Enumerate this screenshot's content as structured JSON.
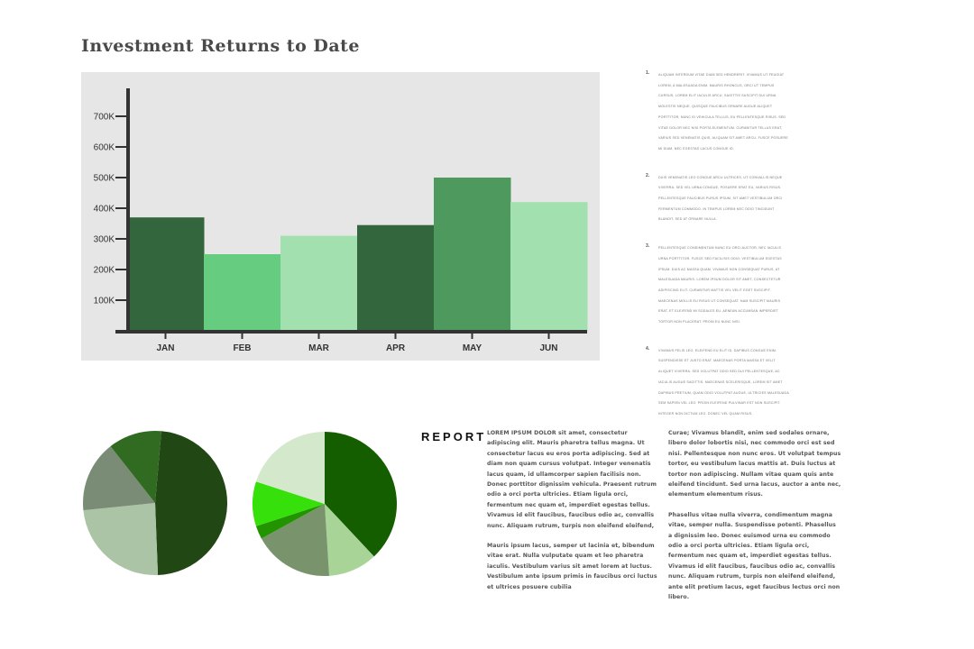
{
  "page": {
    "title": "Investment Returns to Date"
  },
  "chart_data": [
    {
      "type": "bar",
      "title": "Investment Returns to Date",
      "categories": [
        "JAN",
        "FEB",
        "MAR",
        "APR",
        "MAY",
        "JUN"
      ],
      "values": [
        370000,
        250000,
        310000,
        345000,
        500000,
        420000
      ],
      "colors": [
        "#33663d",
        "#66cc80",
        "#a3e0b0",
        "#33663d",
        "#4e995e",
        "#a3e0b0"
      ],
      "yticks": [
        100000,
        200000,
        300000,
        400000,
        500000,
        600000,
        700000
      ],
      "ytick_labels": [
        "100K",
        "200K",
        "300K",
        "400K",
        "500K",
        "600K",
        "700K"
      ],
      "ylim": [
        0,
        750000
      ],
      "grid": false,
      "background": "#e6e6e6"
    },
    {
      "type": "pie",
      "values": [
        48,
        24,
        16,
        12
      ],
      "colors": [
        "#214715",
        "#abc4a6",
        "#7b8c76",
        "#306b21"
      ],
      "start_angle_deg": 5
    },
    {
      "type": "pie",
      "values": [
        38,
        11,
        18,
        3,
        10,
        20
      ],
      "colors": [
        "#155e00",
        "#a8d498",
        "#79946d",
        "#229400",
        "#36e00a",
        "#d4e9cc"
      ],
      "start_angle_deg": 0
    }
  ],
  "list": [
    {
      "num": "1.",
      "text": "Aliquam interdum vitae diam sed hendrerit. Vivamus ut feugiat lorem, a malesuada enim. Mauris rhoncus, orci ut tempus cursus, lorem elit iaculis arcu, sagittis suscipit dui urna molestie neque. Quisque faucibus ornare augue aliquet porttitor, nunc id vehicula tellus, eu pellentesque risus. Sed vitae dolor nec nisi porta elementum. Curabitur tellus erat, varius sed venenatis quis, aliquam sit amet arcu. Fusce posuere mi diam, nec egestas lacus congue id."
    },
    {
      "num": "2.",
      "text": "Duis venenatis leo congue arcu ultrices, ut convallis neque viverra. Sed vel urna congue, posuere erat eu, varius risus. Pellentesque faucibus purus ipsum, sit amet vestibulum orci fermentum commodo. In tempus lorem nec odio tincidunt blandit. Sed at ornare nulla."
    },
    {
      "num": "3.",
      "text": "Pellentesque condimentum nunc eu orci auctor, nec iaculis urna porttitor. Fusce sed facilisis odio, vestibulum egestas ipsum. Duis ac massa quam. Vivamus non consequat purus, at malesuada mauris. Lorem ipsum dolor sit amet, consectetur adipiscing elit. Curabitur mattis vel velit eget suscipit. Maecenas mollis eu risus ut consequat. Nam suscipit mauris erat, et eleifend mi sodales eu. Aenean accumsan imperdiet tortor non placerat. Proin eu nunc nisi."
    },
    {
      "num": "4.",
      "text": "Vivamus felis leo, eleifend eu elit id, dapibus congue enim. Suspendisse et justo erat. Maecenas porta massa et velit aliquet viverra. Sed volutpat odio sed dui pellentesque, ac iaculis augue sagittis. Maecenas scelerisque, lorem sit amet dapibus pretium, quam odio volutpat augue, ultricies malesuada sem sapien vel leo. Proin eleifend pulvinar est non suscipit. Integer non dictum leo. Donec vel quam risus."
    }
  ],
  "report": {
    "heading": "REPORT",
    "col1": [
      "LOREM IPSUM DOLOR sit amet, consectetur adipiscing elit. Mauris pharetra tellus magna. Ut consectetur lacus eu eros porta adipiscing. Sed at diam non quam cursus volutpat. Integer venenatis lacus quam, id ullamcorper sapien facilisis non. Donec porttitor dignissim vehicula. Praesent rutrum odio a orci porta ultricies. Etiam ligula orci, fermentum nec quam et, imperdiet egestas tellus. Vivamus id elit faucibus, faucibus odio ac, convallis nunc. Aliquam rutrum, turpis non eleifend eleifend,",
      "Mauris ipsum lacus, semper ut lacinia et, bibendum vitae erat. Nulla vulputate quam et leo pharetra iaculis. Vestibulum varius sit amet lorem at luctus. Vestibulum ante ipsum primis in faucibus orci luctus et ultrices posuere cubilia"
    ],
    "col2": [
      "Curae; Vivamus blandit, enim sed sodales ornare, libero dolor lobortis nisi, nec commodo orci est sed nisi. Pellentesque non nunc eros. Ut volutpat tempus tortor, eu vestibulum lacus mattis at. Duis luctus at tortor non adipiscing. Nullam vitae quam quis ante eleifend tincidunt. Sed urna lacus, auctor a ante nec, elementum elementum risus.",
      "Phasellus vitae nulla viverra, condimentum magna vitae, semper nulla. Suspendisse potenti. Phasellus a dignissim leo. Donec euismod urna eu commodo odio a orci porta ultricies. Etiam ligula orci, fermentum nec quam et, imperdiet egestas tellus. Vivamus id elit faucibus, faucibus odio ac, convallis nunc. Aliquam rutrum, turpis non eleifend eleifend, ante elit pretium lacus, eget faucibus lectus orci non libero."
    ]
  }
}
